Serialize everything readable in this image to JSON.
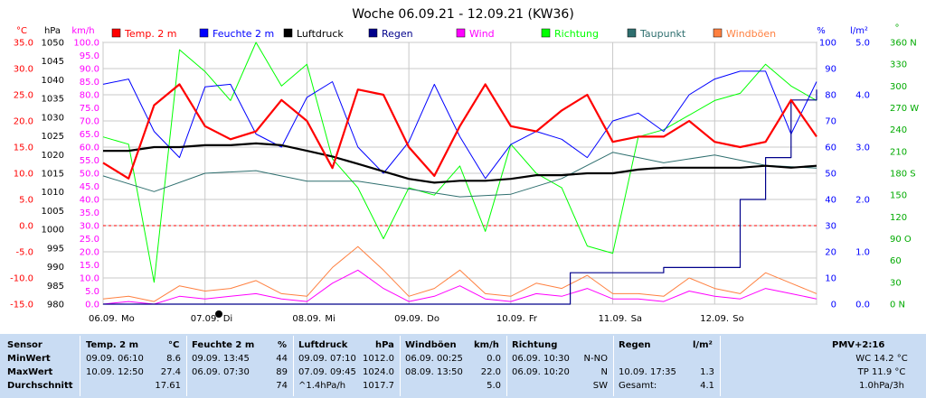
{
  "chart_data": {
    "type": "line",
    "title": "Woche 06.09.21 - 12.09.21 (KW36)",
    "x_labels": [
      "06.09.",
      "Mo",
      "07.09.",
      "Di",
      "08.09.",
      "Mi",
      "09.09.",
      "Do",
      "10.09.",
      "Fr",
      "11.09.",
      "Sa",
      "12.09.",
      "So"
    ],
    "axes": {
      "temp": {
        "unit": "°C",
        "color": "#ff0000",
        "ticks": [
          "35.0",
          "30.0",
          "25.0",
          "20.0",
          "15.0",
          "10.0",
          "5.0",
          "0.0",
          "-5.0",
          "-10.0",
          "-15.0"
        ]
      },
      "pressure": {
        "unit": "hPa",
        "color": "#000000",
        "ticks": [
          "1050",
          "1045",
          "1040",
          "1035",
          "1030",
          "1025",
          "1020",
          "1015",
          "1010",
          "1005",
          "1000",
          "995",
          "990",
          "985",
          "980"
        ]
      },
      "wind": {
        "unit": "km/h",
        "color": "#ff00ff",
        "ticks": [
          "100.0",
          "95.0",
          "90.0",
          "85.0",
          "80.0",
          "75.0",
          "70.0",
          "65.0",
          "60.0",
          "55.0",
          "50.0",
          "45.0",
          "40.0",
          "35.0",
          "30.0",
          "25.0",
          "20.0",
          "15.0",
          "10.0",
          "5.0",
          "0.0"
        ]
      },
      "humidity": {
        "unit": "%",
        "color": "#0000ff",
        "ticks": [
          "100",
          "90",
          "80",
          "70",
          "60",
          "50",
          "40",
          "30",
          "20",
          "10",
          "0"
        ]
      },
      "rain": {
        "unit": "l/m²",
        "color": "#0000ff",
        "ticks": [
          "5.0",
          "4.0",
          "3.0",
          "2.0",
          "1.0",
          "0.0"
        ]
      },
      "direction": {
        "unit": "°",
        "color": "#00aa00",
        "ticks": [
          "360 N",
          "330",
          "300",
          "270 W",
          "240",
          "210",
          "180 S",
          "150",
          "120",
          "90 O",
          "60",
          "30",
          "0 N"
        ]
      }
    },
    "legend": [
      {
        "name": "Temp. 2 m",
        "color": "#ff0000"
      },
      {
        "name": "Feuchte 2 m",
        "color": "#0000ff"
      },
      {
        "name": "Luftdruck",
        "color": "#000000"
      },
      {
        "name": "Regen",
        "color": "#00008b"
      },
      {
        "name": "Wind",
        "color": "#ff00ff"
      },
      {
        "name": "Richtung",
        "color": "#00ff00"
      },
      {
        "name": "Taupunkt",
        "color": "#2f6f6f"
      },
      {
        "name": "Windböen",
        "color": "#ff8040"
      }
    ],
    "series": [
      {
        "name": "Temp. 2 m",
        "color": "#ff0000",
        "x": [
          0,
          6,
          12,
          18,
          24,
          30,
          36,
          42,
          48,
          54,
          60,
          66,
          72,
          78,
          84,
          90,
          96,
          102,
          108,
          114,
          120,
          126,
          132,
          138,
          144,
          150,
          156,
          162,
          168
        ],
        "values": [
          12,
          9,
          23,
          27,
          19,
          16.5,
          18,
          24,
          20,
          11,
          26,
          25,
          15,
          9.5,
          19,
          27,
          19,
          18,
          22,
          25,
          16,
          17,
          17,
          20,
          16,
          15,
          16,
          24,
          17
        ]
      },
      {
        "name": "Feuchte 2 m",
        "color": "#0000ff",
        "x": [
          0,
          6,
          12,
          18,
          24,
          30,
          36,
          42,
          48,
          54,
          60,
          66,
          72,
          78,
          84,
          90,
          96,
          102,
          108,
          114,
          120,
          126,
          132,
          138,
          144,
          150,
          156,
          162,
          168
        ],
        "values": [
          84,
          86,
          66,
          56,
          83,
          84,
          65,
          60,
          79,
          85,
          60,
          50,
          62,
          84,
          64,
          48,
          61,
          66,
          63,
          56,
          70,
          73,
          66,
          80,
          86,
          89,
          89,
          65,
          85
        ]
      },
      {
        "name": "Luftdruck",
        "color": "#000000",
        "x": [
          0,
          6,
          12,
          18,
          24,
          30,
          36,
          42,
          48,
          54,
          60,
          66,
          72,
          78,
          84,
          90,
          96,
          102,
          108,
          114,
          120,
          126,
          132,
          138,
          144,
          150,
          156,
          162,
          168
        ],
        "values": [
          1021,
          1021,
          1022,
          1022,
          1022.5,
          1022.5,
          1023,
          1022.5,
          1021,
          1019.5,
          1017.5,
          1015.5,
          1013.5,
          1012.5,
          1013,
          1013,
          1013.5,
          1014.5,
          1014.5,
          1015,
          1015,
          1016,
          1016.5,
          1016.5,
          1016.5,
          1016.5,
          1017,
          1016.5,
          1017
        ]
      },
      {
        "name": "Taupunkt",
        "color": "#2f6f6f",
        "x": [
          0,
          12,
          24,
          36,
          48,
          60,
          72,
          84,
          96,
          108,
          120,
          132,
          144,
          156,
          168
        ],
        "values": [
          9.5,
          6.5,
          10,
          10.5,
          8.5,
          8.5,
          7,
          5.5,
          6,
          9,
          14,
          12,
          13.5,
          11.5,
          11
        ]
      },
      {
        "name": "Wind",
        "color": "#ff00ff",
        "x": [
          0,
          6,
          12,
          18,
          24,
          30,
          36,
          42,
          48,
          54,
          60,
          66,
          72,
          78,
          84,
          90,
          96,
          102,
          108,
          114,
          120,
          126,
          132,
          138,
          144,
          150,
          156,
          162,
          168
        ],
        "values": [
          0,
          1,
          0,
          3,
          2,
          3,
          4,
          2,
          1,
          8,
          13,
          6,
          1,
          3,
          7,
          2,
          1,
          4,
          3,
          6,
          2,
          2,
          1,
          5,
          3,
          2,
          6,
          4,
          2
        ]
      },
      {
        "name": "Windböen",
        "color": "#ff8040",
        "x": [
          0,
          6,
          12,
          18,
          24,
          30,
          36,
          42,
          48,
          54,
          60,
          66,
          72,
          78,
          84,
          90,
          96,
          102,
          108,
          114,
          120,
          126,
          132,
          138,
          144,
          150,
          156,
          162,
          168
        ],
        "values": [
          2,
          3,
          1,
          7,
          5,
          6,
          9,
          4,
          3,
          14,
          22,
          13,
          3,
          6,
          13,
          4,
          3,
          8,
          6,
          11,
          4,
          4,
          3,
          10,
          6,
          4,
          12,
          8,
          4
        ]
      },
      {
        "name": "Richtung",
        "color": "#00ff00",
        "x": [
          0,
          6,
          12,
          18,
          24,
          30,
          36,
          42,
          48,
          54,
          60,
          66,
          72,
          78,
          84,
          90,
          96,
          102,
          108,
          114,
          120,
          126,
          132,
          138,
          144,
          150,
          156,
          162,
          168
        ],
        "values": [
          230,
          220,
          30,
          350,
          320,
          280,
          360,
          300,
          330,
          200,
          160,
          90,
          160,
          150,
          190,
          100,
          220,
          180,
          160,
          80,
          70,
          230,
          240,
          260,
          280,
          290,
          330,
          300,
          280
        ]
      },
      {
        "name": "Regen",
        "color": "#00008b",
        "x": [
          0,
          100,
          110,
          126,
          132,
          134,
          150,
          156,
          162,
          168
        ],
        "values": [
          0,
          0,
          0.6,
          0.6,
          0.7,
          0.7,
          2.0,
          2.8,
          3.9,
          4.1
        ]
      }
    ],
    "stats": {
      "header": [
        "Sensor",
        "Temp. 2 m",
        "°C",
        "Feuchte 2 m",
        "%",
        "Luftdruck",
        "hPa",
        "Windböen",
        "km/h",
        "Richtung",
        "Regen",
        "l/m²",
        "PMV+2:16"
      ],
      "rows": [
        {
          "label": "MinWert",
          "temp_time": "09.09. 06:10",
          "temp_val": "8.6",
          "hum_time": "09.09. 13:45",
          "hum_val": "44",
          "press_time": "09.09. 07:10",
          "press_val": "1012.0",
          "gust_time": "06.09. 00:25",
          "gust_val": "0.0",
          "dir_time": "06.09. 10:30",
          "dir_val": "N-NO",
          "rain_time": "",
          "rain_val": "",
          "right": "WC 14.2 °C"
        },
        {
          "label": "MaxWert",
          "temp_time": "10.09. 12:50",
          "temp_val": "27.4",
          "hum_time": "06.09. 07:30",
          "hum_val": "89",
          "press_time": "07.09. 09:45",
          "press_val": "1024.0",
          "gust_time": "08.09. 13:50",
          "gust_val": "22.0",
          "dir_time": "06.09. 10:20",
          "dir_val": "N",
          "rain_time": "10.09. 17:35",
          "rain_val": "1.3",
          "right": "TP 11.9 °C"
        },
        {
          "label": "Durchschnitt",
          "temp_time": "",
          "temp_val": "17.61",
          "hum_time": "",
          "hum_val": "74",
          "press_time": "^1.4hPa/h",
          "press_val": "1017.7",
          "gust_time": "",
          "gust_val": "5.0",
          "dir_time": "",
          "dir_val": "SW",
          "rain_time": "Gesamt:",
          "rain_val": "4.1",
          "right": "1.0hPa/3h"
        }
      ]
    }
  }
}
